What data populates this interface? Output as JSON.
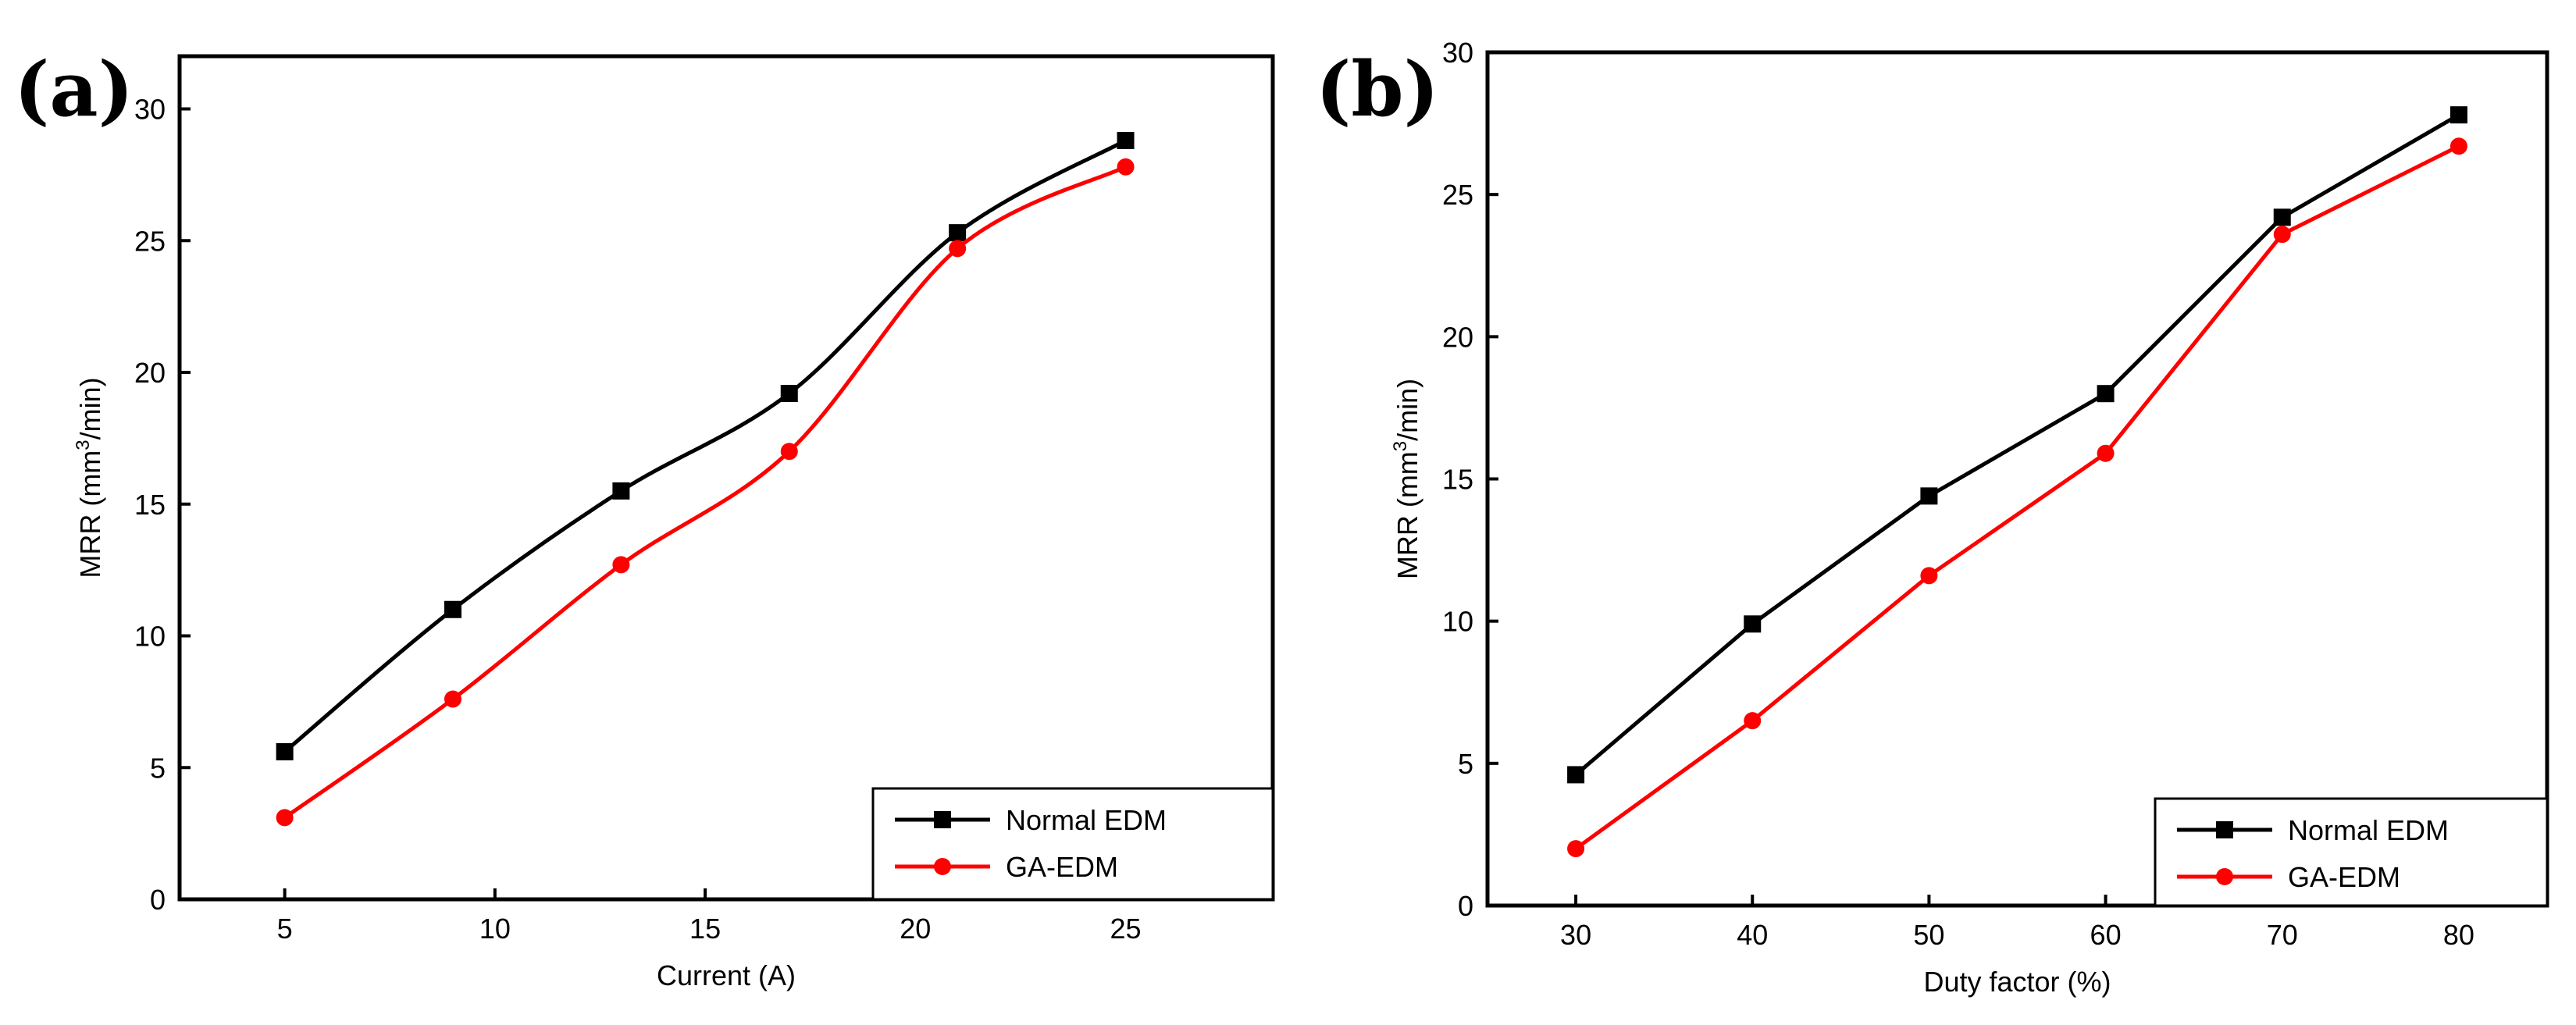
{
  "chart_data": [
    {
      "type": "line",
      "panel_label": "(a)",
      "title": "",
      "xlabel": "Current (A)",
      "ylabel_main": "MRR (mm",
      "ylabel_sup": "3",
      "ylabel_tail": "/min)",
      "xlim": [
        2.5,
        28.5
      ],
      "ylim": [
        0,
        32
      ],
      "xticks": [
        5,
        10,
        15,
        20,
        25
      ],
      "yticks": [
        0,
        5,
        10,
        15,
        20,
        25,
        30
      ],
      "x": [
        5,
        9,
        13,
        17,
        21,
        25
      ],
      "curve": "smooth",
      "legend_position": "bottom-right",
      "series": [
        {
          "name": "Normal EDM",
          "marker": "square",
          "color": "#000000",
          "values": [
            5.6,
            11.0,
            15.5,
            19.2,
            25.3,
            28.8
          ]
        },
        {
          "name": "GA-EDM",
          "marker": "circle",
          "color": "#ff0000",
          "values": [
            3.1,
            7.6,
            12.7,
            17.0,
            24.7,
            27.8
          ]
        }
      ]
    },
    {
      "type": "line",
      "panel_label": "(b)",
      "title": "",
      "xlabel": "Duty factor (%)",
      "ylabel_main": "MRR (mm",
      "ylabel_sup": "3",
      "ylabel_tail": "/min)",
      "xlim": [
        25,
        85
      ],
      "ylim": [
        0,
        30
      ],
      "xticks": [
        30,
        40,
        50,
        60,
        70,
        80
      ],
      "yticks": [
        0,
        5,
        10,
        15,
        20,
        25,
        30
      ],
      "x": [
        30,
        40,
        50,
        60,
        70,
        80
      ],
      "curve": "straight",
      "legend_position": "bottom-right",
      "series": [
        {
          "name": "Normal EDM",
          "marker": "square",
          "color": "#000000",
          "values": [
            4.6,
            9.9,
            14.4,
            18.0,
            24.2,
            27.8
          ]
        },
        {
          "name": "GA-EDM",
          "marker": "circle",
          "color": "#ff0000",
          "values": [
            2.0,
            6.5,
            11.6,
            15.9,
            23.6,
            26.7
          ]
        }
      ]
    }
  ]
}
